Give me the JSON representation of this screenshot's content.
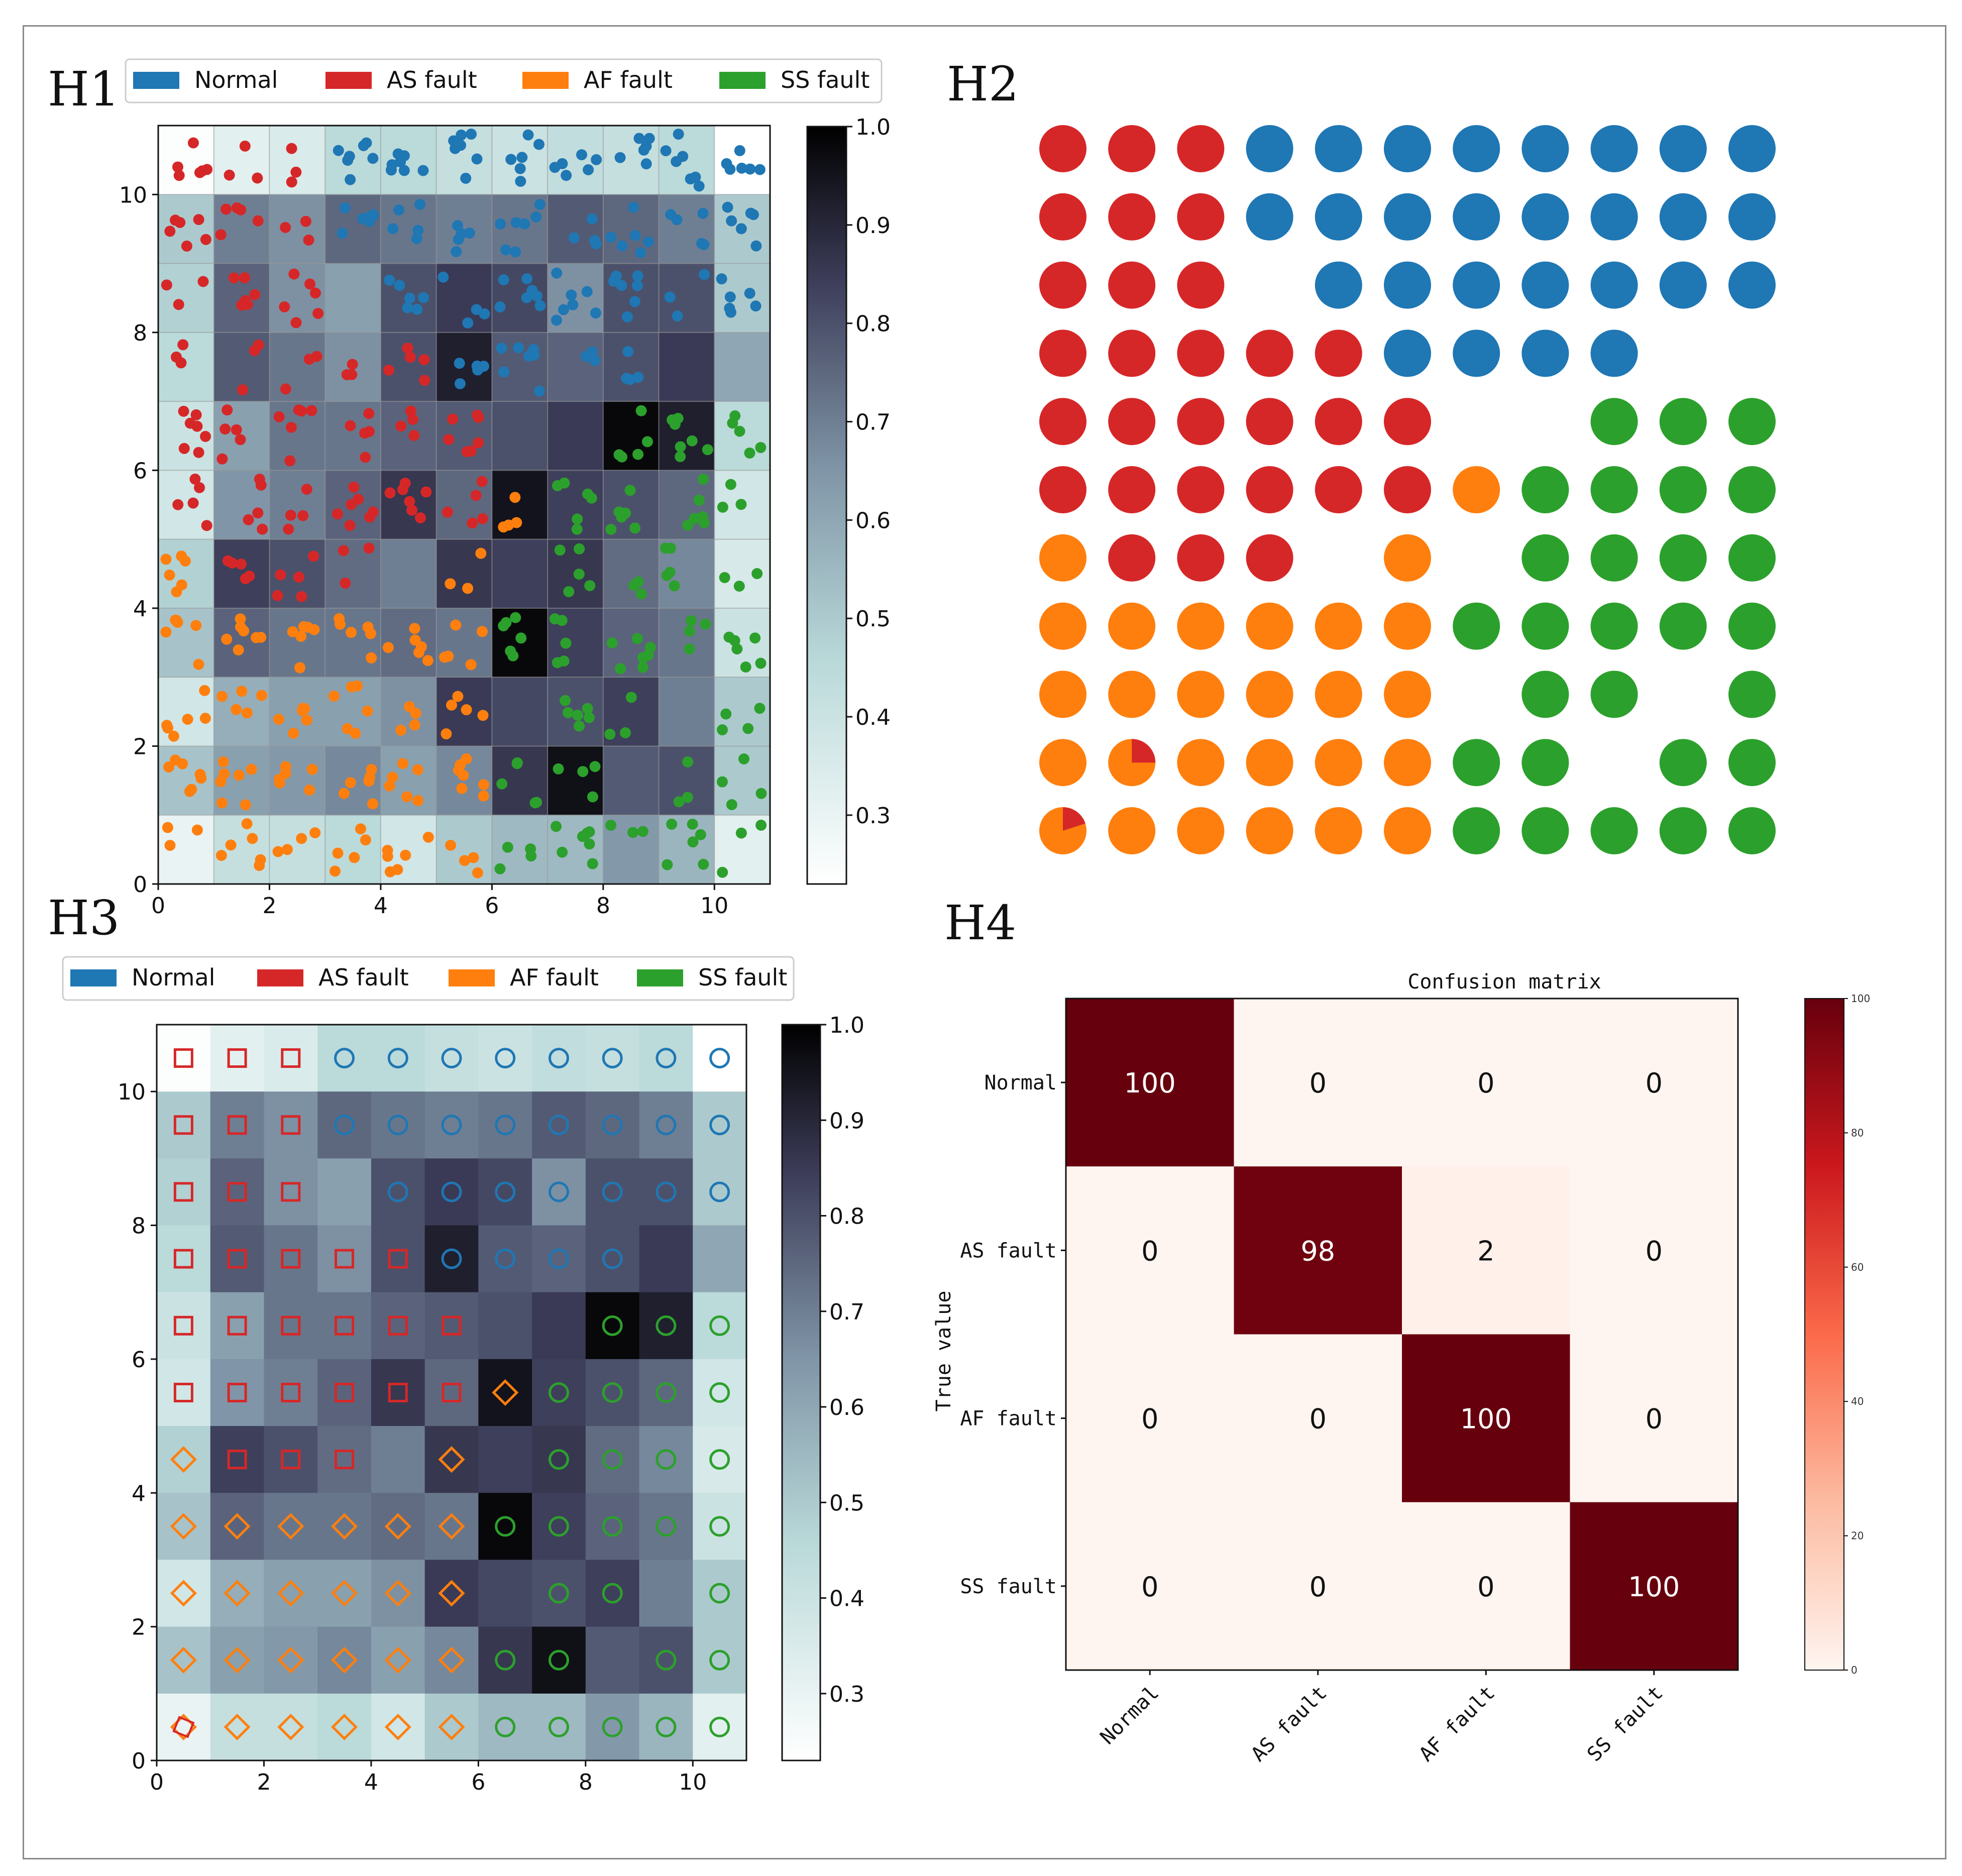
{
  "labels": {
    "h1": "H1",
    "h2": "H2",
    "h3": "H3",
    "h4": "H4"
  },
  "classes": [
    {
      "name": "Normal",
      "color": "#1f77b4"
    },
    {
      "name": "AS fault",
      "color": "#d62728"
    },
    {
      "name": "AF fault",
      "color": "#ff7f0e"
    },
    {
      "name": "SS fault",
      "color": "#2ca02c"
    }
  ],
  "chart_data": [
    {
      "id": "h1",
      "type": "heatmap",
      "title": "",
      "description_of_overlay": "scatter of samples per class over SOM U-matrix",
      "xlim": [
        0,
        11
      ],
      "ylim": [
        0,
        11
      ],
      "xticks": [
        "0",
        "2",
        "4",
        "6",
        "8",
        "10"
      ],
      "yticks": [
        "0",
        "2",
        "4",
        "6",
        "8",
        "10"
      ],
      "colorbar": {
        "min": 0.23,
        "max": 1.0,
        "ticks": [
          "0.3",
          "0.4",
          "0.5",
          "0.6",
          "0.7",
          "0.8",
          "0.9",
          "1.0"
        ]
      },
      "grid_note": "11x11 neuron map; rows listed from top (y=10) to bottom (y=0)",
      "umatrix": [
        [
          0.24,
          0.32,
          0.35,
          0.45,
          0.45,
          0.42,
          0.4,
          0.43,
          0.42,
          0.45,
          0.23
        ],
        [
          0.5,
          0.7,
          0.66,
          0.75,
          0.72,
          0.7,
          0.72,
          0.78,
          0.75,
          0.7,
          0.5
        ],
        [
          0.48,
          0.76,
          0.66,
          0.62,
          0.8,
          0.85,
          0.82,
          0.66,
          0.8,
          0.8,
          0.5
        ],
        [
          0.45,
          0.78,
          0.72,
          0.66,
          0.8,
          0.92,
          0.78,
          0.76,
          0.8,
          0.85,
          0.6
        ],
        [
          0.4,
          0.62,
          0.72,
          0.72,
          0.76,
          0.78,
          0.8,
          0.85,
          0.98,
          0.92,
          0.45
        ],
        [
          0.38,
          0.65,
          0.7,
          0.76,
          0.86,
          0.75,
          0.95,
          0.84,
          0.8,
          0.75,
          0.38
        ],
        [
          0.48,
          0.84,
          0.8,
          0.74,
          0.7,
          0.86,
          0.84,
          0.86,
          0.74,
          0.68,
          0.36
        ],
        [
          0.52,
          0.76,
          0.72,
          0.72,
          0.74,
          0.72,
          0.98,
          0.84,
          0.76,
          0.72,
          0.4
        ],
        [
          0.38,
          0.58,
          0.62,
          0.62,
          0.66,
          0.85,
          0.82,
          0.8,
          0.84,
          0.7,
          0.5
        ],
        [
          0.52,
          0.62,
          0.64,
          0.68,
          0.62,
          0.68,
          0.86,
          0.96,
          0.78,
          0.8,
          0.5
        ],
        [
          0.3,
          0.42,
          0.42,
          0.45,
          0.38,
          0.5,
          0.55,
          0.55,
          0.64,
          0.56,
          0.32
        ]
      ],
      "dominant_class_per_cell": [
        [
          "AS fault",
          "AS fault",
          "AS fault",
          "Normal",
          "Normal",
          "Normal",
          "Normal",
          "Normal",
          "Normal",
          "Normal",
          "Normal"
        ],
        [
          "AS fault",
          "AS fault",
          "AS fault",
          "Normal",
          "Normal",
          "Normal",
          "Normal",
          "Normal",
          "Normal",
          "Normal",
          "Normal"
        ],
        [
          "AS fault",
          "AS fault",
          "AS fault",
          "",
          "Normal",
          "Normal",
          "Normal",
          "Normal",
          "Normal",
          "Normal",
          "Normal"
        ],
        [
          "AS fault",
          "AS fault",
          "AS fault",
          "AS fault",
          "AS fault",
          "Normal",
          "Normal",
          "Normal",
          "Normal",
          "",
          ""
        ],
        [
          "AS fault",
          "AS fault",
          "AS fault",
          "AS fault",
          "AS fault",
          "AS fault",
          "",
          "",
          "SS fault",
          "SS fault",
          "SS fault"
        ],
        [
          "AS fault",
          "AS fault",
          "AS fault",
          "AS fault",
          "AS fault",
          "AS fault",
          "AF fault",
          "SS fault",
          "SS fault",
          "SS fault",
          "SS fault"
        ],
        [
          "AF fault",
          "AS fault",
          "AS fault",
          "AS fault",
          "",
          "AF fault",
          "",
          "SS fault",
          "SS fault",
          "SS fault",
          "SS fault"
        ],
        [
          "AF fault",
          "AF fault",
          "AF fault",
          "AF fault",
          "AF fault",
          "AF fault",
          "SS fault",
          "SS fault",
          "SS fault",
          "SS fault",
          "SS fault"
        ],
        [
          "AF fault",
          "AF fault",
          "AF fault",
          "AF fault",
          "AF fault",
          "AF fault",
          "",
          "SS fault",
          "SS fault",
          "",
          "SS fault"
        ],
        [
          "AF fault",
          "AF fault",
          "AF fault",
          "AF fault",
          "AF fault",
          "AF fault",
          "SS fault",
          "SS fault",
          "",
          "SS fault",
          "SS fault"
        ],
        [
          "AF fault",
          "AF fault",
          "AF fault",
          "AF fault",
          "AF fault",
          "AF fault",
          "SS fault",
          "SS fault",
          "SS fault",
          "SS fault",
          "SS fault"
        ]
      ]
    },
    {
      "id": "h2",
      "type": "scatter",
      "title": "",
      "note": "winning-neuron class map, 11x11; rows top to bottom; mixed pies at row 9 col 1 and row 10 col 0 (small AS fault wedge in AF fault circle)",
      "grid": [
        [
          "AS fault",
          "AS fault",
          "AS fault",
          "Normal",
          "Normal",
          "Normal",
          "Normal",
          "Normal",
          "Normal",
          "Normal",
          "Normal"
        ],
        [
          "AS fault",
          "AS fault",
          "AS fault",
          "Normal",
          "Normal",
          "Normal",
          "Normal",
          "Normal",
          "Normal",
          "Normal",
          "Normal"
        ],
        [
          "AS fault",
          "AS fault",
          "AS fault",
          "",
          "Normal",
          "Normal",
          "Normal",
          "Normal",
          "Normal",
          "Normal",
          "Normal"
        ],
        [
          "AS fault",
          "AS fault",
          "AS fault",
          "AS fault",
          "AS fault",
          "Normal",
          "Normal",
          "Normal",
          "Normal",
          "",
          ""
        ],
        [
          "AS fault",
          "AS fault",
          "AS fault",
          "AS fault",
          "AS fault",
          "AS fault",
          "",
          "",
          "SS fault",
          "SS fault",
          "SS fault"
        ],
        [
          "AS fault",
          "AS fault",
          "AS fault",
          "AS fault",
          "AS fault",
          "AS fault",
          "AF fault",
          "SS fault",
          "SS fault",
          "SS fault",
          "SS fault"
        ],
        [
          "AF fault",
          "AS fault",
          "AS fault",
          "AS fault",
          "",
          "AF fault",
          "",
          "SS fault",
          "SS fault",
          "SS fault",
          "SS fault"
        ],
        [
          "AF fault",
          "AF fault",
          "AF fault",
          "AF fault",
          "AF fault",
          "AF fault",
          "SS fault",
          "SS fault",
          "SS fault",
          "SS fault",
          "SS fault"
        ],
        [
          "AF fault",
          "AF fault",
          "AF fault",
          "AF fault",
          "AF fault",
          "AF fault",
          "",
          "SS fault",
          "SS fault",
          "",
          "SS fault"
        ],
        [
          "AF fault",
          "AF fault",
          "AF fault",
          "AF fault",
          "AF fault",
          "AF fault",
          "SS fault",
          "SS fault",
          "",
          "SS fault",
          "SS fault"
        ],
        [
          "AF fault",
          "AF fault",
          "AF fault",
          "AF fault",
          "AF fault",
          "AF fault",
          "SS fault",
          "SS fault",
          "SS fault",
          "SS fault",
          "SS fault"
        ]
      ],
      "mixed": [
        {
          "row": 9,
          "col": 1,
          "as_fraction": 0.25
        },
        {
          "row": 10,
          "col": 0,
          "as_fraction": 0.2
        }
      ]
    },
    {
      "id": "h3",
      "type": "heatmap",
      "title": "",
      "xlim": [
        0,
        11
      ],
      "ylim": [
        0,
        11
      ],
      "xticks": [
        "0",
        "2",
        "4",
        "6",
        "8",
        "10"
      ],
      "yticks": [
        "0",
        "2",
        "4",
        "6",
        "8",
        "10"
      ],
      "colorbar": {
        "min": 0.23,
        "max": 1.0,
        "ticks": [
          "0.3",
          "0.4",
          "0.5",
          "0.6",
          "0.7",
          "0.8",
          "0.9",
          "1.0"
        ]
      },
      "markers": {
        "Normal": "circle",
        "AS fault": "square",
        "AF fault": "diamond",
        "SS fault": "circle"
      },
      "note": "same U-matrix as H1 with class markers on each neuron; row 10 col 0 shows overlapped diamond and square"
    },
    {
      "id": "h4",
      "type": "heatmap",
      "title": "Confusion matrix",
      "ylabel": "True value",
      "categories": [
        "Normal",
        "AS fault",
        "AF fault",
        "SS fault"
      ],
      "matrix": [
        [
          100,
          0,
          0,
          0
        ],
        [
          0,
          98,
          2,
          0
        ],
        [
          0,
          0,
          100,
          0
        ],
        [
          0,
          0,
          0,
          100
        ]
      ],
      "colorbar": {
        "min": 0,
        "max": 100,
        "ticks": [
          "0",
          "20",
          "40",
          "60",
          "80",
          "100"
        ]
      }
    }
  ]
}
